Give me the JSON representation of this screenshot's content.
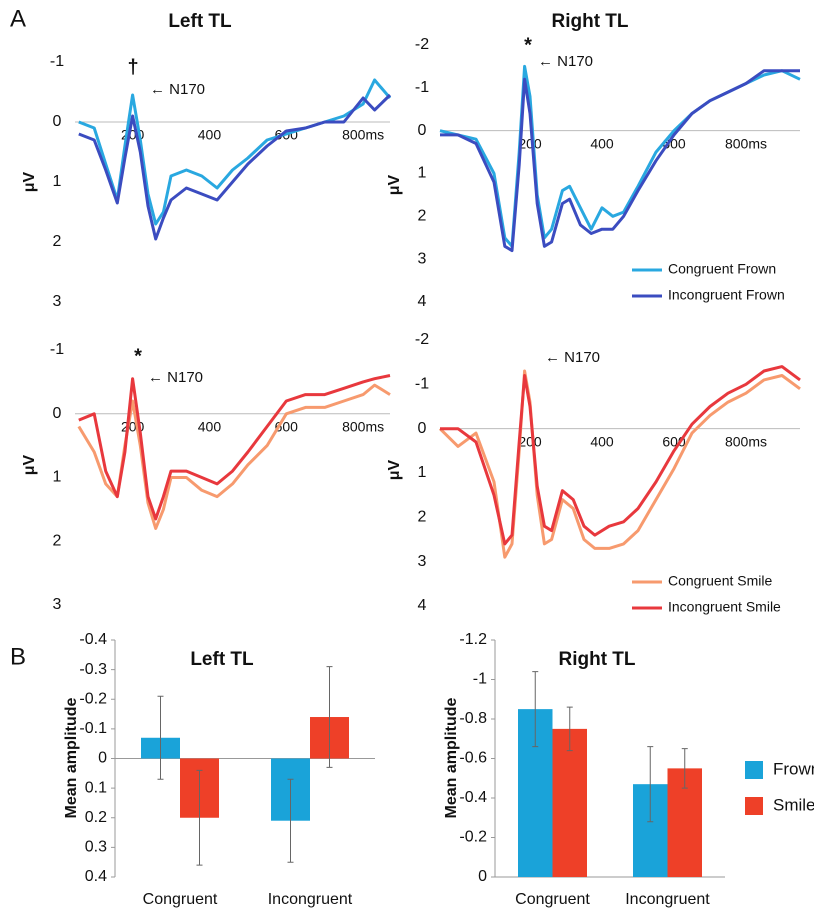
{
  "panel_labels": [
    "A",
    "B"
  ],
  "chart_data": [
    {
      "type": "line",
      "title": "Left TL",
      "y_label": "μV",
      "y_inverted": true,
      "annotations": [
        "†",
        "← N170"
      ],
      "x": [
        60,
        100,
        130,
        160,
        180,
        200,
        220,
        240,
        260,
        280,
        300,
        340,
        380,
        420,
        460,
        500,
        550,
        600,
        650,
        700,
        750,
        800,
        830,
        870
      ],
      "xlim": [
        50,
        870
      ],
      "xticks": [
        200,
        400,
        600,
        {
          "value": 800,
          "label": "800ms"
        }
      ],
      "ylim": [
        -1,
        3
      ],
      "yticks": [
        -1,
        0,
        1,
        2,
        3
      ],
      "series": [
        {
          "name": "Congruent Frown",
          "color": "#29a8e0",
          "values": [
            0.0,
            0.1,
            0.7,
            1.3,
            0.4,
            -0.45,
            0.3,
            1.2,
            1.7,
            1.5,
            0.9,
            0.8,
            0.9,
            1.1,
            0.8,
            0.6,
            0.3,
            0.2,
            0.1,
            0.0,
            -0.1,
            -0.3,
            -0.7,
            -0.4
          ]
        },
        {
          "name": "Incongruent Frown",
          "color": "#3b4cc0",
          "values": [
            0.2,
            0.3,
            0.8,
            1.35,
            0.6,
            -0.1,
            0.5,
            1.4,
            1.95,
            1.6,
            1.3,
            1.1,
            1.2,
            1.3,
            1.0,
            0.7,
            0.4,
            0.15,
            0.1,
            0.0,
            0.0,
            -0.4,
            -0.2,
            -0.45
          ]
        }
      ]
    },
    {
      "type": "line",
      "title": "Right TL",
      "y_label": "μV",
      "y_inverted": true,
      "legend": "lower right",
      "annotations": [
        "*",
        "← N170"
      ],
      "x": [
        -50,
        0,
        50,
        100,
        130,
        150,
        170,
        185,
        200,
        220,
        240,
        260,
        290,
        310,
        340,
        370,
        400,
        430,
        460,
        500,
        550,
        600,
        650,
        700,
        750,
        800,
        850,
        900,
        950
      ],
      "xlim": [
        -50,
        950
      ],
      "xticks": [
        200,
        400,
        600,
        {
          "value": 800,
          "label": "800ms"
        }
      ],
      "ylim": [
        -2,
        4
      ],
      "yticks": [
        -2,
        -1,
        0,
        1,
        2,
        3,
        4
      ],
      "series": [
        {
          "name": "Congruent Frown",
          "color": "#29a8e0",
          "values": [
            0.0,
            0.1,
            0.2,
            1.0,
            2.5,
            2.7,
            0.5,
            -1.5,
            -0.8,
            1.5,
            2.5,
            2.3,
            1.4,
            1.3,
            1.8,
            2.3,
            1.8,
            2.0,
            1.9,
            1.3,
            0.5,
            0.0,
            -0.4,
            -0.7,
            -0.9,
            -1.1,
            -1.3,
            -1.4,
            -1.2
          ]
        },
        {
          "name": "Incongruent Frown",
          "color": "#3b4cc0",
          "values": [
            0.1,
            0.1,
            0.3,
            1.2,
            2.7,
            2.8,
            0.8,
            -1.2,
            -0.4,
            1.7,
            2.7,
            2.6,
            1.7,
            1.6,
            2.2,
            2.4,
            2.3,
            2.3,
            2.0,
            1.4,
            0.7,
            0.1,
            -0.4,
            -0.7,
            -0.9,
            -1.1,
            -1.4,
            -1.4,
            -1.4
          ]
        }
      ]
    },
    {
      "type": "line",
      "y_label": "μV",
      "y_inverted": true,
      "annotations": [
        "*",
        "← N170"
      ],
      "x": [
        60,
        100,
        130,
        160,
        180,
        200,
        220,
        240,
        260,
        280,
        300,
        340,
        380,
        420,
        460,
        500,
        550,
        600,
        650,
        700,
        750,
        800,
        830,
        870
      ],
      "xlim": [
        50,
        870
      ],
      "xticks": [
        200,
        400,
        600,
        {
          "value": 800,
          "label": "800ms"
        }
      ],
      "ylim": [
        -1,
        3
      ],
      "yticks": [
        -1,
        0,
        1,
        2,
        3
      ],
      "series": [
        {
          "name": "Congruent Smile",
          "color": "#f79a6e",
          "values": [
            0.2,
            0.6,
            1.1,
            1.3,
            0.5,
            -0.2,
            0.5,
            1.4,
            1.8,
            1.5,
            1.0,
            1.0,
            1.2,
            1.3,
            1.1,
            0.8,
            0.5,
            0.0,
            -0.1,
            -0.1,
            -0.2,
            -0.3,
            -0.45,
            -0.3
          ]
        },
        {
          "name": "Incongruent Smile",
          "color": "#e8383d",
          "values": [
            0.1,
            0.0,
            0.9,
            1.3,
            0.6,
            -0.55,
            0.3,
            1.3,
            1.65,
            1.3,
            0.9,
            0.9,
            1.0,
            1.1,
            0.9,
            0.6,
            0.2,
            -0.2,
            -0.3,
            -0.3,
            -0.4,
            -0.5,
            -0.55,
            -0.6
          ]
        }
      ]
    },
    {
      "type": "line",
      "y_label": "μV",
      "y_inverted": true,
      "legend": "lower right",
      "annotations": [
        "← N170"
      ],
      "x": [
        -50,
        0,
        50,
        100,
        130,
        150,
        170,
        185,
        200,
        220,
        240,
        260,
        290,
        320,
        350,
        380,
        420,
        460,
        500,
        550,
        600,
        650,
        700,
        750,
        800,
        850,
        900,
        950
      ],
      "xlim": [
        -50,
        950
      ],
      "xticks": [
        200,
        400,
        600,
        {
          "value": 800,
          "label": "800ms"
        }
      ],
      "ylim": [
        -2,
        4
      ],
      "yticks": [
        -2,
        -1,
        0,
        1,
        2,
        3,
        4
      ],
      "series": [
        {
          "name": "Congruent Smile",
          "color": "#f79a6e",
          "values": [
            0.0,
            0.4,
            0.1,
            1.2,
            2.9,
            2.6,
            0.5,
            -1.3,
            -0.6,
            1.5,
            2.6,
            2.5,
            1.6,
            1.8,
            2.5,
            2.7,
            2.7,
            2.6,
            2.3,
            1.6,
            0.9,
            0.1,
            -0.3,
            -0.6,
            -0.8,
            -1.1,
            -1.2,
            -0.9
          ]
        },
        {
          "name": "Incongruent Smile",
          "color": "#e8383d",
          "values": [
            0.0,
            0.0,
            0.3,
            1.5,
            2.6,
            2.4,
            0.3,
            -1.2,
            -0.5,
            1.3,
            2.2,
            2.3,
            1.4,
            1.6,
            2.2,
            2.4,
            2.2,
            2.1,
            1.8,
            1.2,
            0.5,
            -0.1,
            -0.5,
            -0.8,
            -1.0,
            -1.3,
            -1.4,
            -1.1
          ]
        }
      ]
    },
    {
      "type": "bar",
      "title": "Left TL",
      "y_label": "Mean amplitude",
      "y_inverted": true,
      "categories": [
        "Congruent",
        "Incongruent"
      ],
      "ylim": [
        -0.4,
        0.4
      ],
      "yticks": [
        -0.4,
        -0.3,
        -0.2,
        -0.1,
        0,
        0.1,
        0.2,
        0.3,
        0.4
      ],
      "series": [
        {
          "name": "Frown",
          "color": "#1aa3d9",
          "values": [
            -0.07,
            0.21
          ],
          "errors": [
            0.14,
            0.14
          ]
        },
        {
          "name": "Smile",
          "color": "#ee4028",
          "values": [
            0.2,
            -0.14
          ],
          "errors": [
            0.16,
            0.17
          ]
        }
      ]
    },
    {
      "type": "bar",
      "title": "Right TL",
      "y_label": "Mean amplitude",
      "y_inverted": true,
      "legend": "right",
      "categories": [
        "Congruent",
        "Incongruent"
      ],
      "ylim": [
        -1.2,
        0
      ],
      "yticks": [
        -1.2,
        -1,
        -0.8,
        -0.6,
        -0.4,
        -0.2,
        0
      ],
      "series": [
        {
          "name": "Frown",
          "color": "#1aa3d9",
          "values": [
            -0.85,
            -0.47
          ],
          "errors": [
            0.19,
            0.19
          ]
        },
        {
          "name": "Smile",
          "color": "#ee4028",
          "values": [
            -0.75,
            -0.55
          ],
          "errors": [
            0.11,
            0.1
          ]
        }
      ]
    }
  ]
}
